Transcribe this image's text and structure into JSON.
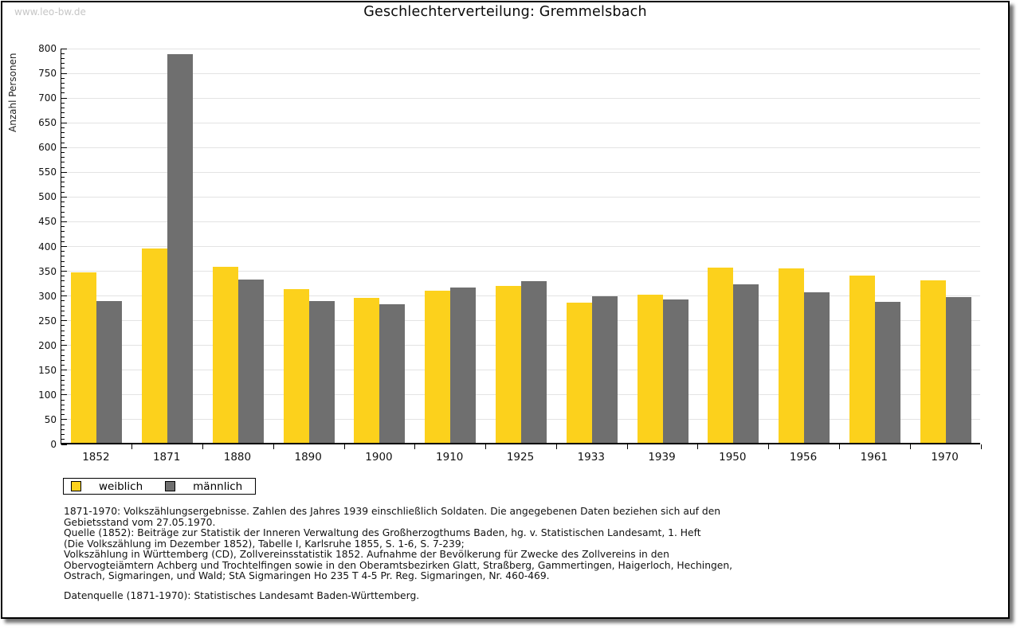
{
  "page": {
    "watermark": "www.leo-bw.de",
    "title": "Geschlechterverteilung: Gremmelsbach"
  },
  "chart_data": {
    "type": "bar",
    "title": "Geschlechterverteilung: Gremmelsbach",
    "xlabel": "",
    "ylabel": "Anzahl Personen",
    "ylim": [
      0,
      800
    ],
    "ytick_step": 50,
    "yminor_step": 10,
    "grid": true,
    "legend_position": "bottom-left",
    "categories": [
      "1852",
      "1871",
      "1880",
      "1890",
      "1900",
      "1910",
      "1925",
      "1933",
      "1939",
      "1950",
      "1956",
      "1961",
      "1970"
    ],
    "series": [
      {
        "name": "weiblich",
        "color": "#fcd11c",
        "values": [
          344,
          392,
          356,
          311,
          293,
          307,
          317,
          283,
          300,
          354,
          353,
          338,
          329
        ]
      },
      {
        "name": "männlich",
        "color": "#6f6f6f",
        "values": [
          286,
          785,
          330,
          287,
          280,
          314,
          327,
          296,
          289,
          320,
          304,
          285,
          294
        ]
      }
    ]
  },
  "legend": {
    "items": [
      {
        "label": "weiblich",
        "color": "#fcd11c"
      },
      {
        "label": "männlich",
        "color": "#6f6f6f"
      }
    ]
  },
  "footnotes": {
    "lines": [
      "1871-1970: Volkszählungsergebnisse. Zahlen des Jahres 1939 einschließlich Soldaten. Die angegebenen Daten beziehen sich auf den",
      "Gebietsstand vom 27.05.1970.",
      "Quelle (1852): Beiträge zur Statistik der Inneren Verwaltung des Großherzogthums Baden, hg. v. Statistischen Landesamt, 1. Heft",
      "(Die Volkszählung im Dezember 1852), Tabelle I, Karlsruhe 1855, S. 1-6, S. 7-239;",
      "Volkszählung in Württemberg (CD), Zollvereinsstatistik 1852. Aufnahme der Bevölkerung für Zwecke des Zollvereins in den",
      "Obervogteiämtern Achberg und Trochtelfingen sowie in den Oberamtsbezirken Glatt, Straßberg, Gammertingen, Haigerloch, Hechingen,",
      "Ostrach, Sigmaringen, und Wald; StA Sigmaringen Ho 235 T 4-5 Pr. Reg. Sigmaringen, Nr. 460-469."
    ],
    "datasource": "Datenquelle (1871-1970): Statistisches Landesamt Baden-Württemberg."
  },
  "colors": {
    "gridline": "#e3e3e3",
    "axis": "#000000",
    "watermark": "#c6c6c6"
  }
}
